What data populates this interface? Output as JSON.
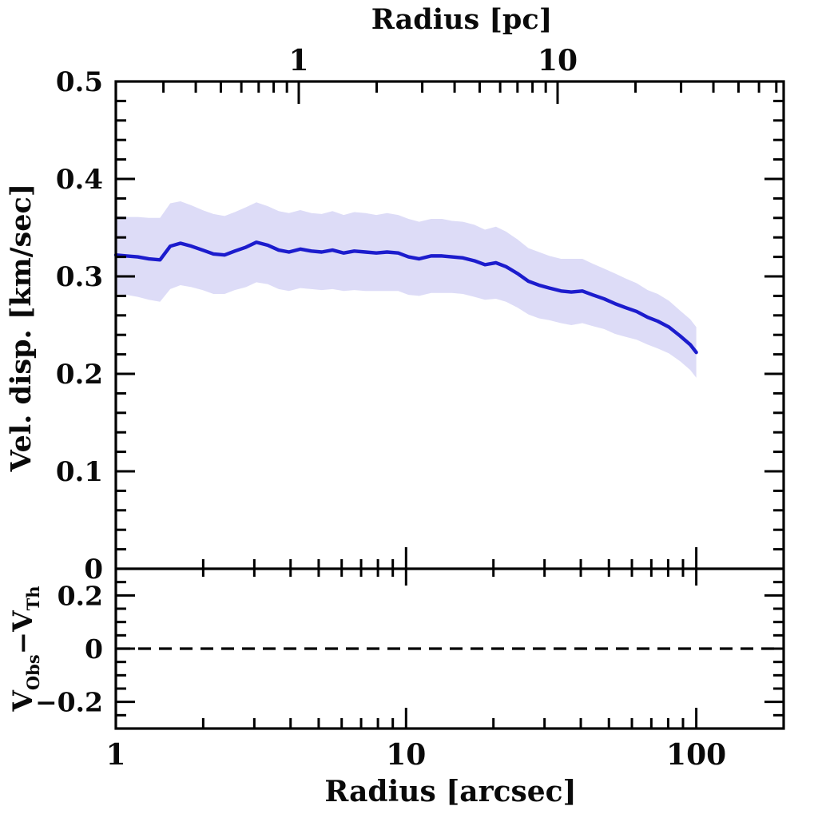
{
  "figure": {
    "background": "#ffffff",
    "frame_color": "#000000",
    "line_color": "#1c1ccd",
    "band_color": "#dddcf7"
  },
  "chart_data": {
    "type": "line",
    "description": "Velocity dispersion profile vs radius (log x-axis) with shaded uncertainty band, plus lower residual panel with dashed zero line",
    "top_axis": {
      "label": "Radius [pc]",
      "scale": "log",
      "major_ticks": [
        1,
        10
      ],
      "major_labels": [
        "1",
        "10"
      ],
      "minor_ticks": [
        0.3,
        0.4,
        0.5,
        0.6,
        0.7,
        0.8,
        0.9,
        2,
        3,
        4,
        5,
        6,
        7,
        8,
        9,
        20,
        30,
        40,
        50,
        60,
        70
      ]
    },
    "x_axis": {
      "label": "Radius [arcsec]",
      "scale": "log",
      "range": [
        1,
        200
      ],
      "major_ticks": [
        1,
        10,
        100
      ],
      "major_labels": [
        "1",
        "10",
        "100"
      ],
      "minor_ticks": [
        2,
        3,
        4,
        5,
        6,
        7,
        8,
        9,
        20,
        30,
        40,
        50,
        60,
        70,
        80,
        90
      ]
    },
    "y_axis": {
      "label": "Vel. disp. [km/sec]",
      "range": [
        0,
        0.5
      ],
      "major_ticks": [
        0,
        0.1,
        0.2,
        0.3,
        0.4,
        0.5
      ],
      "major_labels": [
        "0",
        "0.1",
        "0.2",
        "0.3",
        "0.4",
        "0.5"
      ],
      "minor_step": 0.02
    },
    "residual_axis": {
      "label_parts": [
        "V",
        "Obs",
        "−",
        "V",
        "Th"
      ],
      "range": [
        -0.3,
        0.3
      ],
      "major_ticks": [
        0.2,
        0,
        -0.2
      ],
      "major_labels": [
        "0.2",
        "0",
        "−0.2"
      ],
      "minor_step": 0.05,
      "reference_line": 0
    },
    "series": [
      {
        "name": "velocity-dispersion",
        "x": [
          1.0,
          1.09,
          1.19,
          1.3,
          1.42,
          1.54,
          1.67,
          1.82,
          1.99,
          2.17,
          2.37,
          2.57,
          2.81,
          3.05,
          3.34,
          3.64,
          3.95,
          4.32,
          4.72,
          5.12,
          5.58,
          6.1,
          6.63,
          7.25,
          7.9,
          8.6,
          9.4,
          10.2,
          11.1,
          12.2,
          13.3,
          14.4,
          15.7,
          17.2,
          18.7,
          20.4,
          22.1,
          24.2,
          26.4,
          28.7,
          31.2,
          34.2,
          37.1,
          40.5,
          44.0,
          48.1,
          52.5,
          57.0,
          62.3,
          68.0,
          73.7,
          80.5,
          87.9,
          95.3,
          100.0
        ],
        "y": [
          0.322,
          0.321,
          0.32,
          0.318,
          0.317,
          0.331,
          0.334,
          0.331,
          0.327,
          0.323,
          0.322,
          0.326,
          0.33,
          0.335,
          0.332,
          0.327,
          0.325,
          0.328,
          0.326,
          0.325,
          0.327,
          0.324,
          0.326,
          0.325,
          0.324,
          0.325,
          0.324,
          0.32,
          0.318,
          0.321,
          0.321,
          0.32,
          0.319,
          0.316,
          0.312,
          0.314,
          0.31,
          0.303,
          0.295,
          0.291,
          0.288,
          0.285,
          0.284,
          0.285,
          0.281,
          0.277,
          0.272,
          0.268,
          0.264,
          0.258,
          0.254,
          0.248,
          0.239,
          0.23,
          0.222
        ],
        "err": [
          0.04,
          0.04,
          0.041,
          0.042,
          0.043,
          0.044,
          0.043,
          0.042,
          0.041,
          0.041,
          0.04,
          0.04,
          0.041,
          0.041,
          0.04,
          0.04,
          0.04,
          0.04,
          0.039,
          0.039,
          0.04,
          0.039,
          0.04,
          0.04,
          0.039,
          0.04,
          0.039,
          0.039,
          0.038,
          0.038,
          0.038,
          0.037,
          0.037,
          0.037,
          0.036,
          0.037,
          0.036,
          0.035,
          0.034,
          0.034,
          0.033,
          0.033,
          0.034,
          0.033,
          0.032,
          0.031,
          0.031,
          0.03,
          0.029,
          0.028,
          0.028,
          0.027,
          0.026,
          0.026,
          0.026
        ]
      }
    ]
  }
}
